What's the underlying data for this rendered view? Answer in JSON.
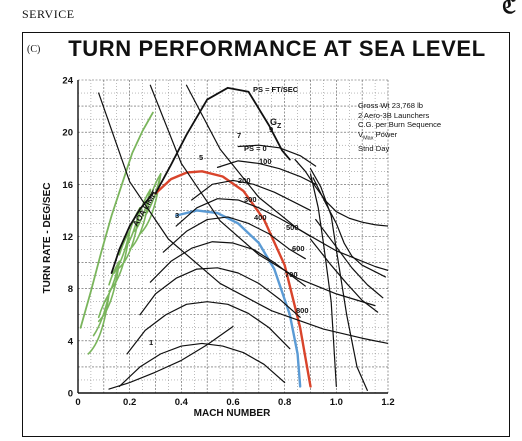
{
  "header": {
    "section": "SERVICE",
    "corner_mark": "ℭ"
  },
  "chart_data": {
    "type": "line",
    "classification": "(C)",
    "title": "TURN PERFORMANCE AT SEA LEVEL",
    "xlabel": "MACH NUMBER",
    "ylabel": "TURN RATE - DEG/SEC",
    "xlim": [
      0,
      1.2
    ],
    "ylim": [
      0,
      24
    ],
    "x_ticks": [
      "0",
      "0.2",
      "0.4",
      "0.6",
      "0.8",
      "1.0",
      "1.2"
    ],
    "y_ticks": [
      "0",
      "4",
      "8",
      "12",
      "16",
      "20",
      "24"
    ],
    "grid": true,
    "notes": [
      "Gross Wt 23,768 lb",
      "2 Aero-3B Launchers",
      "C.G. per Burn Sequence",
      "V",
      "Max",
      " Power",
      "Stnd Day"
    ],
    "header_annotation": "PS = FT/SEC",
    "aoa_label": "AOA LIMIT",
    "gz_label": "G",
    "gz_sub": "Z",
    "ps_labels": [
      "PS = 0",
      "100",
      "200",
      "300",
      "400",
      "500",
      "600",
      "700",
      "800"
    ],
    "g_labels": [
      "1",
      "3",
      "5",
      "7",
      "9"
    ],
    "colors": {
      "ink": "#111111",
      "aoa_hatch": "#7ab55c",
      "red_curve": "#d9442b",
      "blue_curve": "#5b9bd5"
    },
    "series": [
      {
        "x": [
          0.3,
          0.36,
          0.42,
          0.48,
          0.56,
          0.64,
          0.72,
          0.8,
          0.86,
          0.9
        ],
        "y": [
          15.3,
          16.4,
          16.9,
          17.0,
          16.6,
          15.5,
          13.3,
          9.8,
          5.0,
          0.5
        ]
      },
      {
        "x": [
          0.38,
          0.46,
          0.54,
          0.62,
          0.7,
          0.76,
          0.82,
          0.85,
          0.86
        ],
        "y": [
          13.6,
          14.0,
          13.8,
          13.0,
          11.5,
          9.5,
          6.0,
          3.0,
          0.5
        ]
      },
      {
        "x": [
          0.13,
          0.16,
          0.2,
          0.24,
          0.29
        ],
        "y": [
          9.2,
          11.0,
          12.8,
          14.1,
          15.3
        ]
      },
      {
        "x": [
          0.3,
          0.36,
          0.42,
          0.5,
          0.58,
          0.66,
          0.74,
          0.79,
          0.82
        ],
        "y": [
          15.3,
          17.5,
          19.8,
          22.5,
          23.4,
          23.1,
          20.5,
          18.6,
          17.9
        ]
      },
      {
        "x": [
          0.84,
          0.88,
          0.92,
          0.96,
          1.0,
          1.05,
          1.1,
          1.15,
          1.2
        ],
        "y": [
          17.9,
          17.0,
          15.8,
          14.7,
          13.9,
          13.4,
          13.1,
          12.9,
          12.8
        ]
      },
      {
        "x": [
          0.62,
          0.7,
          0.78,
          0.86,
          0.92
        ],
        "y": [
          18.9,
          19.0,
          18.8,
          18.2,
          17.4
        ]
      },
      {
        "x": [
          0.54,
          0.62,
          0.7,
          0.78,
          0.86,
          0.92
        ],
        "y": [
          17.3,
          17.8,
          17.6,
          17.2,
          16.6,
          16.0
        ]
      },
      {
        "x": [
          0.44,
          0.52,
          0.6,
          0.68,
          0.76,
          0.84,
          0.9
        ],
        "y": [
          14.8,
          16.0,
          16.3,
          16.0,
          15.4,
          14.6,
          14.0
        ]
      },
      {
        "x": [
          0.38,
          0.46,
          0.54,
          0.62,
          0.7,
          0.78,
          0.86,
          0.9
        ],
        "y": [
          12.8,
          14.2,
          14.9,
          14.8,
          14.2,
          13.4,
          12.5,
          12.0
        ]
      },
      {
        "x": [
          0.33,
          0.42,
          0.5,
          0.58,
          0.66,
          0.74,
          0.82,
          0.88
        ],
        "y": [
          10.8,
          12.4,
          13.3,
          13.5,
          13.0,
          12.2,
          11.0,
          10.3
        ]
      },
      {
        "x": [
          0.28,
          0.36,
          0.44,
          0.52,
          0.6,
          0.68,
          0.76,
          0.84,
          0.88
        ],
        "y": [
          8.5,
          10.1,
          11.1,
          11.6,
          11.5,
          11.0,
          10.0,
          8.8,
          8.2
        ]
      },
      {
        "x": [
          0.24,
          0.3,
          0.38,
          0.46,
          0.54,
          0.62,
          0.7,
          0.78,
          0.86
        ],
        "y": [
          6.0,
          7.6,
          8.8,
          9.5,
          9.6,
          9.2,
          8.4,
          7.2,
          5.8
        ]
      },
      {
        "x": [
          0.19,
          0.26,
          0.34,
          0.42,
          0.5,
          0.58,
          0.66,
          0.74,
          0.82
        ],
        "y": [
          3.0,
          4.8,
          6.0,
          6.8,
          7.0,
          6.8,
          6.1,
          5.0,
          3.4
        ]
      },
      {
        "x": [
          0.16,
          0.24,
          0.32,
          0.4,
          0.48,
          0.56,
          0.64,
          0.72,
          0.8
        ],
        "y": [
          0.5,
          2.0,
          3.0,
          3.6,
          3.8,
          3.6,
          3.1,
          2.2,
          0.8
        ]
      },
      {
        "x": [
          0.08,
          0.2,
          0.35,
          0.55,
          0.75,
          0.95,
          1.1,
          1.2
        ],
        "y": [
          23.0,
          16.2,
          11.8,
          8.4,
          6.3,
          4.9,
          4.2,
          3.8
        ]
      },
      {
        "x": [
          0.28,
          0.4,
          0.55,
          0.7,
          0.85,
          1.0,
          1.15
        ],
        "y": [
          23.6,
          17.6,
          13.2,
          10.6,
          8.8,
          7.6,
          6.7
        ]
      },
      {
        "x": [
          0.42,
          0.55,
          0.7,
          0.85,
          1.0,
          1.15,
          1.2
        ],
        "y": [
          23.6,
          18.7,
          15.0,
          12.6,
          10.9,
          9.7,
          9.4
        ]
      },
      {
        "x": [
          0.12,
          0.2,
          0.3,
          0.4,
          0.5,
          0.6
        ],
        "y": [
          0.3,
          0.8,
          1.6,
          2.5,
          3.7,
          5.1
        ]
      },
      {
        "x": [
          0.9,
          0.94,
          0.98,
          1.0,
          1.04,
          1.08,
          1.12
        ],
        "y": [
          17.2,
          15.8,
          13.6,
          11.0,
          6.0,
          2.0,
          0.2
        ]
      },
      {
        "x": [
          0.9,
          0.93,
          0.95,
          0.98,
          1.0
        ],
        "y": [
          16.8,
          14.2,
          11.5,
          7.0,
          0.5
        ]
      },
      {
        "x": [
          0.91,
          0.96,
          1.0,
          1.03,
          1.06,
          1.1,
          1.15,
          1.19
        ],
        "y": [
          16.5,
          14.5,
          13.0,
          11.5,
          10.5,
          9.8,
          9.3,
          8.9
        ]
      },
      {
        "x": [
          0.92,
          1.0,
          1.06,
          1.12,
          1.18
        ],
        "y": [
          13.3,
          11.2,
          9.6,
          8.3,
          7.3
        ]
      },
      {
        "x": [
          0.9,
          0.98,
          1.04,
          1.1,
          1.16
        ],
        "y": [
          11.8,
          9.8,
          8.4,
          7.1,
          6.2
        ]
      }
    ]
  }
}
